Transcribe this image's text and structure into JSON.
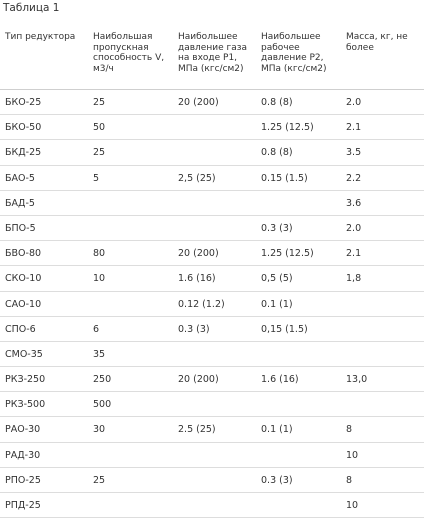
{
  "caption": "Таблица 1",
  "headers": [
    "Тип редуктора",
    "Наибольшая пропускная способность V, м3/ч",
    "Наибольшее давление газа на входе Р1, МПа (кгс/см2)",
    "Наибольшее рабочее давление Р2, МПа (кгс/см2)",
    "Масса, кг, не более"
  ],
  "rows": [
    [
      "БКО-25",
      "25",
      "20 (200)",
      "0.8 (8)",
      "2.0"
    ],
    [
      "БКО-50",
      "50",
      "",
      "1.25 (12.5)",
      "2.1"
    ],
    [
      "БКД-25",
      "25",
      "",
      "0.8 (8)",
      "3.5"
    ],
    [
      "БАО-5",
      "5",
      "2,5 (25)",
      "0.15 (1.5)",
      "2.2"
    ],
    [
      "БАД-5",
      "",
      "",
      "",
      "3.6"
    ],
    [
      "БПО-5",
      "",
      "",
      "0.3 (3)",
      "2.0"
    ],
    [
      "БВО-80",
      "80",
      "20 (200)",
      "1.25 (12.5)",
      "2.1"
    ],
    [
      "СКО-10",
      "10",
      "1.6 (16)",
      "0,5 (5)",
      "1,8"
    ],
    [
      "САО-10",
      "",
      "0.12 (1.2)",
      "0.1 (1)",
      ""
    ],
    [
      "СПО-6",
      "6",
      "0.3 (3)",
      "0,15 (1.5)",
      ""
    ],
    [
      "СМО-35",
      "35",
      "",
      "",
      ""
    ],
    [
      "РКЗ-250",
      "250",
      "20 (200)",
      "1.6 (16)",
      "13,0"
    ],
    [
      "РКЗ-500",
      "500",
      "",
      "",
      ""
    ],
    [
      "РАО-30",
      "30",
      "2.5 (25)",
      "0.1 (1)",
      "8"
    ],
    [
      "РАД-30",
      "",
      "",
      "",
      "10"
    ],
    [
      "РПО-25",
      "25",
      "",
      "0.3 (3)",
      "8"
    ],
    [
      "РПД-25",
      "",
      "",
      "",
      "10"
    ]
  ]
}
